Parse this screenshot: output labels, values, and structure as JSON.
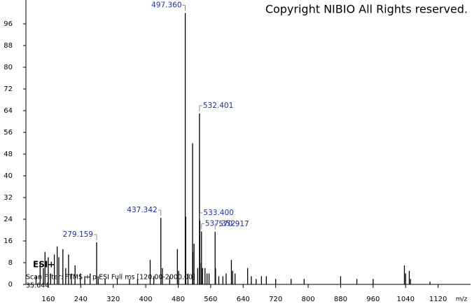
{
  "chart_data": {
    "type": "stem",
    "title": "Copyright NIBIO All Rights reserved.",
    "x_label": "m/z",
    "annotations_text": [
      "ESI+",
      "Scan Filter: FTMS + p ESI Full ms [120.00-2000.00]",
      "35.644"
    ],
    "x": [
      130,
      140,
      148,
      152,
      160,
      166,
      175,
      182,
      186,
      196,
      203,
      210,
      217,
      226,
      239,
      250,
      263,
      279.159,
      283,
      300,
      330,
      360,
      380,
      411,
      420,
      437.342,
      441,
      459,
      478,
      481,
      497.36,
      498.5,
      504,
      515.38,
      516,
      519,
      528,
      532.401,
      533.4,
      534,
      537.352,
      540,
      546,
      551,
      556,
      570.917,
      572,
      580,
      590,
      598,
      611,
      614,
      620,
      651,
      660,
      672,
      685,
      697,
      720,
      758,
      790,
      880,
      920,
      960,
      1037,
      1040,
      1049,
      1052,
      1100
    ],
    "values": [
      3,
      8,
      6,
      12,
      10,
      4,
      11,
      14,
      10,
      13,
      6,
      11,
      4,
      7,
      4,
      3,
      4,
      15.5,
      3,
      2,
      2,
      2,
      2,
      9,
      3,
      24.5,
      6,
      3,
      13,
      5,
      100,
      25,
      4,
      52,
      12,
      15,
      6,
      63,
      23.5,
      8,
      19.5,
      6,
      6,
      4,
      4,
      19.4,
      6,
      3,
      3,
      4,
      9,
      5,
      4,
      6,
      3,
      2,
      3,
      3,
      2,
      2,
      2,
      3,
      2,
      2,
      7,
      4,
      5,
      2,
      1
    ],
    "color": "#000000",
    "peak_labels": [
      {
        "x": {
          "value": 497.36,
          "label": "497.360"
        },
        "y": 100
      },
      {
        "x": {
          "value": 532.401,
          "label": "532.401"
        },
        "y": 63
      },
      {
        "x": {
          "value": 437.342,
          "label": "437.342"
        },
        "y": 24.5
      },
      {
        "x": {
          "value": 533.4,
          "label": "533.400"
        },
        "y": 23.5
      },
      {
        "x": {
          "value": 537.352,
          "label": "537.352"
        },
        "y": 19.5
      },
      {
        "x": {
          "value": 570.917,
          "label": "570.917"
        },
        "y": 19.4
      },
      {
        "x": {
          "value": 279.159,
          "label": "279.159"
        },
        "y": 15.5
      }
    ],
    "label_color": "#1f2f9a",
    "xlim": [
      105,
      1200
    ],
    "xticks": [
      160,
      240,
      320,
      400,
      480,
      560,
      640,
      720,
      800,
      880,
      960,
      1040,
      1120
    ],
    "ylim": [
      0,
      104
    ],
    "yticks": [
      0,
      8,
      16,
      24,
      32,
      40,
      48,
      56,
      64,
      72,
      80,
      88,
      96
    ],
    "grid": false
  }
}
